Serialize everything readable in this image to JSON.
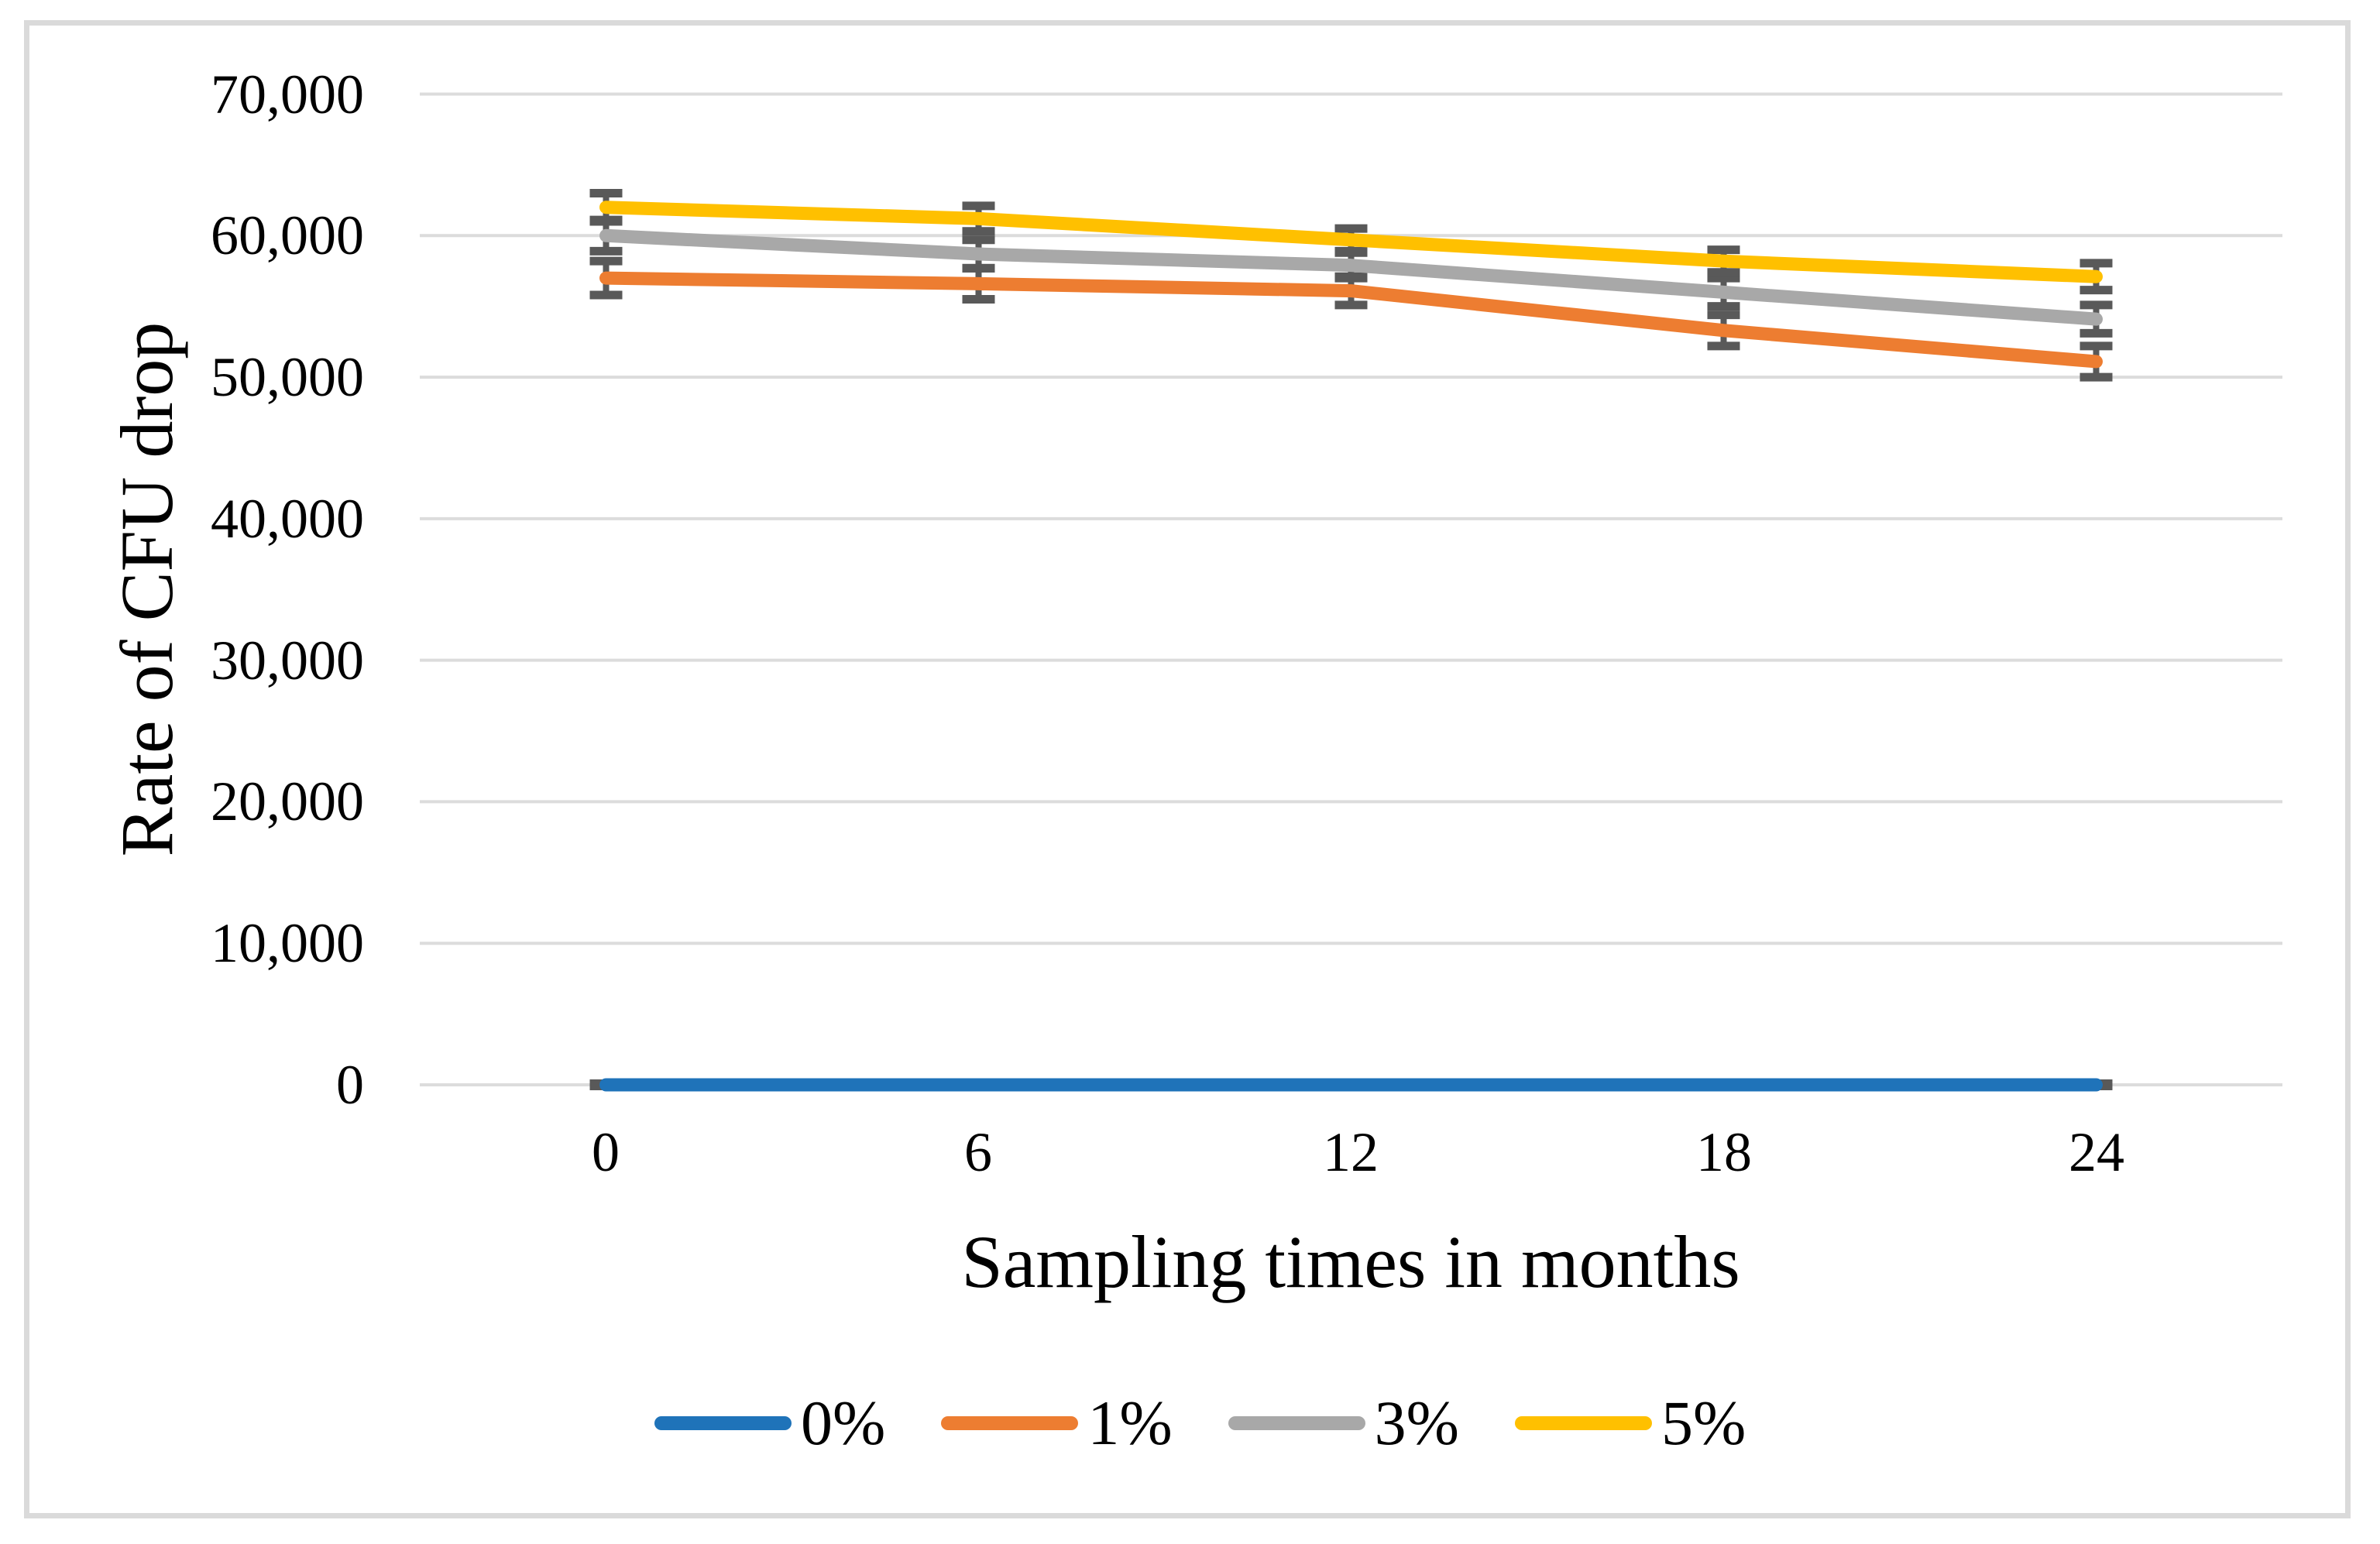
{
  "chart_data": {
    "type": "line",
    "title": "",
    "xlabel": "Sampling times in months",
    "ylabel": "Rate of CFU drop",
    "categories": [
      "0",
      "6",
      "12",
      "18",
      "24"
    ],
    "x_values": [
      0,
      6,
      12,
      18,
      24
    ],
    "ytick_labels": [
      "0",
      "10,000",
      "20,000",
      "30,000",
      "40,000",
      "50,000",
      "60,000",
      "70,000"
    ],
    "ylim": [
      0,
      70000
    ],
    "grid": true,
    "legend_position": "bottom",
    "error_bars": true,
    "series": [
      {
        "name": "0%",
        "color": "#1F73B9",
        "values": [
          0,
          0,
          0,
          0,
          0
        ],
        "errors": [
          80,
          80,
          80,
          80,
          80
        ]
      },
      {
        "name": "1%",
        "color": "#ED7D31",
        "values": [
          57000,
          56600,
          56100,
          53300,
          51100
        ],
        "errors": [
          1200,
          1100,
          1000,
          1100,
          1100
        ]
      },
      {
        "name": "3%",
        "color": "#A8A8A8",
        "values": [
          60000,
          58700,
          57900,
          56000,
          54100
        ],
        "errors": [
          1100,
          1000,
          900,
          1000,
          1000
        ]
      },
      {
        "name": "5%",
        "color": "#FFC000",
        "values": [
          62000,
          61200,
          59700,
          58200,
          57100
        ],
        "errors": [
          1000,
          900,
          800,
          800,
          950
        ]
      }
    ],
    "colors": {
      "gridline": "#DCDCDC",
      "error_bar": "#595959",
      "frame": "#DADADA",
      "text": "#000000",
      "background": "#FFFFFF"
    }
  }
}
